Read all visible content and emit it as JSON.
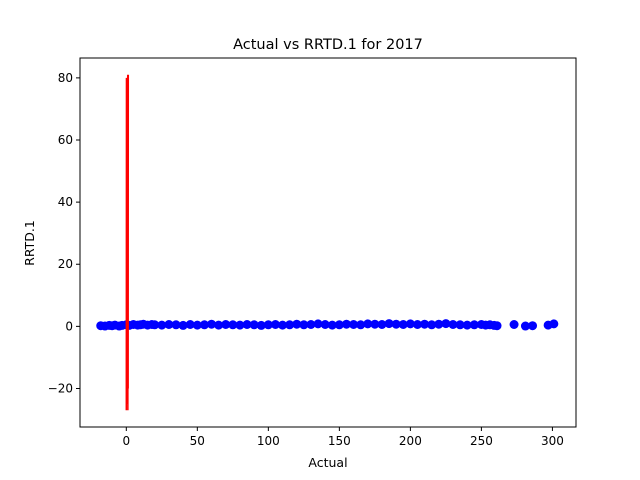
{
  "chart_data": {
    "type": "scatter",
    "title": "Actual vs RRTD.1 for 2017",
    "xlabel": "Actual",
    "ylabel": "RRTD.1",
    "xlim": [
      -32.6,
      316.6
    ],
    "ylim": [
      -32.4,
      86.4
    ],
    "xticks": [
      0,
      50,
      100,
      150,
      200,
      250,
      300
    ],
    "yticks": [
      -20,
      0,
      20,
      40,
      60,
      80
    ],
    "grid": false,
    "point_color": "#0000ff",
    "fit_line_color": "#ff0000",
    "series": [
      {
        "name": "points",
        "x": [
          -18,
          -15,
          -12,
          -10,
          -8,
          -5,
          -3,
          0,
          2,
          5,
          8,
          10,
          12,
          15,
          18,
          20,
          25,
          30,
          35,
          40,
          45,
          50,
          55,
          60,
          65,
          70,
          75,
          80,
          85,
          90,
          95,
          100,
          105,
          110,
          115,
          120,
          125,
          130,
          135,
          140,
          145,
          150,
          155,
          160,
          165,
          170,
          175,
          180,
          185,
          190,
          195,
          200,
          205,
          210,
          215,
          220,
          225,
          230,
          235,
          240,
          245,
          250,
          253,
          256,
          259,
          261,
          273,
          281,
          286,
          297,
          301
        ],
        "y": [
          0.2,
          0.1,
          0.3,
          0.2,
          0.4,
          0.1,
          0.3,
          0.5,
          0.3,
          0.6,
          0.4,
          0.5,
          0.7,
          0.4,
          0.6,
          0.5,
          0.4,
          0.6,
          0.5,
          0.3,
          0.6,
          0.4,
          0.5,
          0.7,
          0.4,
          0.6,
          0.5,
          0.4,
          0.6,
          0.5,
          0.3,
          0.5,
          0.6,
          0.4,
          0.5,
          0.7,
          0.5,
          0.6,
          0.8,
          0.6,
          0.4,
          0.5,
          0.7,
          0.6,
          0.5,
          0.8,
          0.7,
          0.6,
          0.9,
          0.7,
          0.6,
          0.8,
          0.6,
          0.7,
          0.5,
          0.7,
          0.9,
          0.6,
          0.5,
          0.4,
          0.5,
          0.6,
          0.4,
          0.5,
          0.3,
          0.2,
          0.6,
          0.1,
          0.2,
          0.4,
          0.8
        ]
      },
      {
        "name": "fit-line",
        "x": [
          0,
          0.1,
          0.2,
          0.3,
          0.4,
          0.5,
          0.6,
          0.7,
          0.8,
          0.9,
          1,
          1.1,
          1.2,
          1.3,
          1.4
        ],
        "y": [
          -27,
          80,
          -25,
          75,
          -15,
          60,
          -10,
          40,
          -5,
          20,
          81,
          -27,
          50,
          -20,
          81
        ]
      }
    ]
  }
}
